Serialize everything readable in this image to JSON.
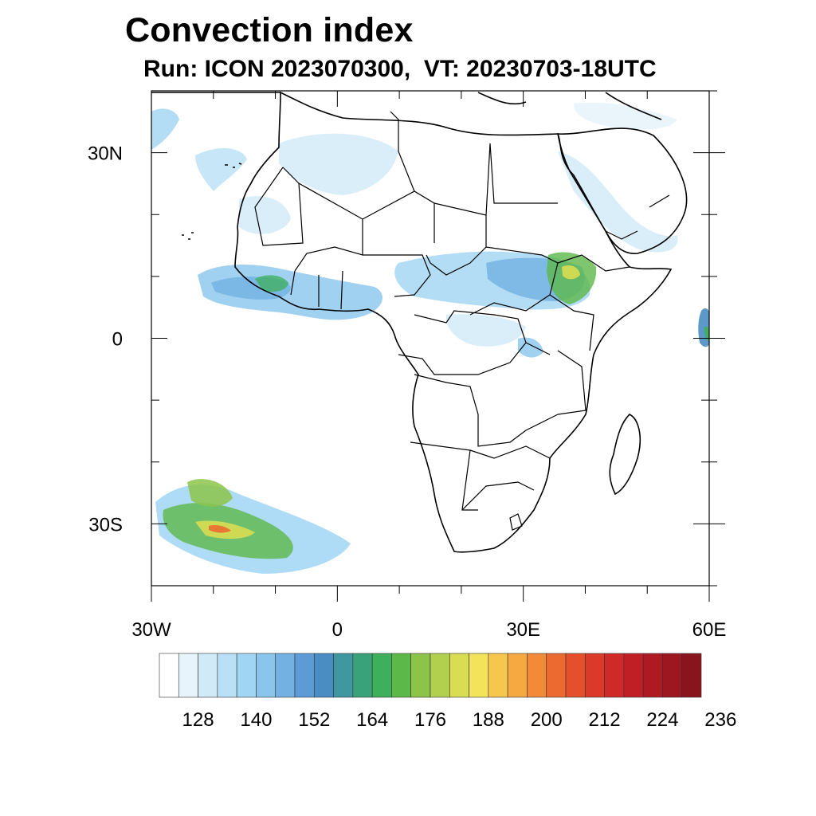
{
  "title": "Convection index",
  "subtitle": "Run: ICON 2023070300,  VT: 20230703-18UTC",
  "map": {
    "lon_range": [
      -30,
      60
    ],
    "lat_range": [
      -40,
      40
    ],
    "lat_ticks": [
      {
        "value": 30,
        "label": "30N"
      },
      {
        "value": 0,
        "label": "0"
      },
      {
        "value": -30,
        "label": "30S"
      }
    ],
    "lon_ticks": [
      {
        "value": -30,
        "label": "30W"
      },
      {
        "value": 0,
        "label": "0"
      },
      {
        "value": 30,
        "label": "30E"
      },
      {
        "value": 60,
        "label": "60E"
      }
    ],
    "region": "Africa"
  },
  "colorbar": {
    "colors": [
      "#ffffff",
      "#e8f4fb",
      "#d0eaf8",
      "#b9e0f6",
      "#a0d5f3",
      "#8ac6ec",
      "#72b1e2",
      "#5c9bd6",
      "#4a8dc2",
      "#3f97a0",
      "#3aa27a",
      "#3eaf5a",
      "#5db84a",
      "#8cc44a",
      "#b3cf4e",
      "#d9dd52",
      "#f3e35a",
      "#f7c64c",
      "#f6a941",
      "#f28a38",
      "#ec6a30",
      "#e4502c",
      "#db3a2a",
      "#cf2a28",
      "#c01f25",
      "#ae1a22",
      "#9c1720",
      "#8a141e"
    ],
    "labels": [
      "128",
      "140",
      "152",
      "164",
      "176",
      "188",
      "200",
      "212",
      "224",
      "236"
    ],
    "label_steps": [
      2,
      5,
      8,
      11,
      14,
      17,
      20,
      23,
      26,
      29
    ]
  }
}
